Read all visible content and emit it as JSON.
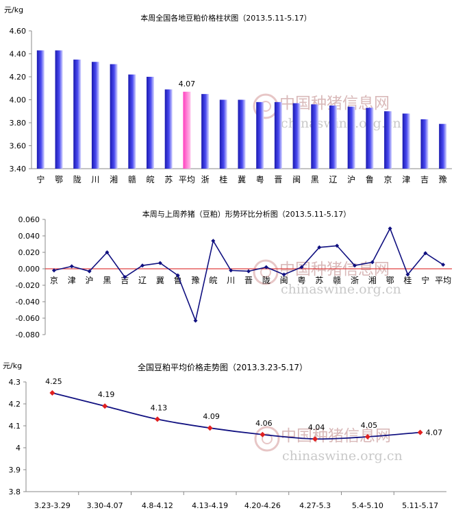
{
  "watermark": {
    "cn": "中国种猪信息网",
    "en": "chinaswine.org.cn"
  },
  "chart_data": [
    {
      "type": "bar",
      "title": "本周全国各地豆粕价格柱状图（2013.5.11-5.17）",
      "ylabel": "元/kg",
      "ylim": [
        3.4,
        4.6
      ],
      "yticks": [
        "3.40",
        "3.60",
        "3.80",
        "4.00",
        "4.20",
        "4.40",
        "4.60"
      ],
      "categories": [
        "宁",
        "鄂",
        "陇",
        "川",
        "湘",
        "赣",
        "皖",
        "苏",
        "平均",
        "浙",
        "桂",
        "冀",
        "粤",
        "晋",
        "闽",
        "黑",
        "辽",
        "沪",
        "鲁",
        "京",
        "津",
        "吉",
        "豫"
      ],
      "values": [
        4.43,
        4.43,
        4.35,
        4.33,
        4.31,
        4.22,
        4.2,
        4.09,
        4.07,
        4.05,
        4.0,
        4.0,
        3.98,
        3.98,
        3.97,
        3.96,
        3.95,
        3.94,
        3.93,
        3.9,
        3.88,
        3.83,
        3.79
      ],
      "highlight": "平均",
      "highlight_label": "4.07",
      "colors": {
        "bar": "#2b2bd6",
        "highlight": "#ff66cc"
      }
    },
    {
      "type": "line",
      "title": "本周与上周养猪（豆粕）形势环比分析图（2013.5.11-5.17）",
      "ylim": [
        -0.08,
        0.06
      ],
      "yticks": [
        "0.060",
        "0.040",
        "0.020",
        "0.000",
        "-0.020",
        "-0.040",
        "-0.060",
        "-0.080"
      ],
      "categories": [
        "京",
        "津",
        "沪",
        "黑",
        "吉",
        "辽",
        "冀",
        "鲁",
        "豫",
        "皖",
        "川",
        "晋",
        "陇",
        "闽",
        "粤",
        "苏",
        "赣",
        "浙",
        "湘",
        "鄂",
        "桂",
        "宁",
        "平均"
      ],
      "values": [
        -0.002,
        0.003,
        -0.003,
        0.02,
        -0.01,
        0.004,
        0.007,
        -0.008,
        -0.063,
        0.034,
        -0.002,
        -0.003,
        0.002,
        -0.007,
        0.002,
        0.026,
        0.028,
        0.004,
        0.008,
        0.049,
        -0.007,
        0.019,
        0.005
      ],
      "colors": {
        "line": "#101080",
        "zero": "#e04040"
      }
    },
    {
      "type": "line",
      "title": "全国豆粕平均价格走势图（2013.3.23-5.17）",
      "ylabel": "元/kg",
      "ylim": [
        3.8,
        4.3
      ],
      "yticks": [
        "3.8",
        "3.9",
        "4",
        "4.1",
        "4.2",
        "4.3"
      ],
      "categories": [
        "3.23-3.29",
        "3.30-4.07",
        "4.8-4.12",
        "4.13-4.19",
        "4.20-4.26",
        "4.27-5.3",
        "5.4-5.10",
        "5.11-5.17"
      ],
      "values": [
        4.25,
        4.19,
        4.13,
        4.09,
        4.06,
        4.04,
        4.05,
        4.07
      ],
      "labels": [
        "4.25",
        "4.19",
        "4.13",
        "4.09",
        "4.06",
        "4.04",
        "4.05",
        "4.07"
      ],
      "colors": {
        "line": "#101080",
        "marker": "#e02020"
      }
    }
  ]
}
